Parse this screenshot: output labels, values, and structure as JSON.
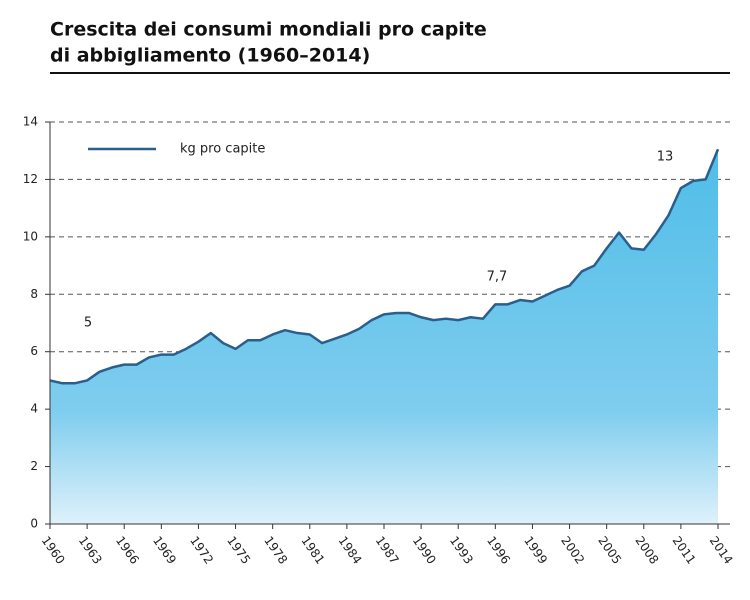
{
  "chart_data": {
    "type": "area",
    "title": [
      "Crescita dei consumi mondiali pro capite",
      "di abbigliamento (1960–2014)"
    ],
    "x": [
      1960,
      1961,
      1962,
      1963,
      1964,
      1965,
      1966,
      1967,
      1968,
      1969,
      1970,
      1971,
      1972,
      1973,
      1974,
      1975,
      1976,
      1977,
      1978,
      1979,
      1980,
      1981,
      1982,
      1983,
      1984,
      1985,
      1986,
      1987,
      1988,
      1989,
      1990,
      1991,
      1992,
      1993,
      1994,
      1995,
      1996,
      1997,
      1998,
      1999,
      2000,
      2001,
      2002,
      2003,
      2004,
      2005,
      2006,
      2007,
      2008,
      2009,
      2010,
      2011,
      2012,
      2013,
      2014
    ],
    "series": [
      {
        "name": "kg pro capite",
        "color": "#2b5e8c",
        "values": [
          5.0,
          4.9,
          4.9,
          5.0,
          5.3,
          5.45,
          5.55,
          5.55,
          5.8,
          5.9,
          5.9,
          6.1,
          6.35,
          6.65,
          6.3,
          6.1,
          6.4,
          6.4,
          6.6,
          6.75,
          6.65,
          6.6,
          6.3,
          6.45,
          6.6,
          6.8,
          7.1,
          7.3,
          7.35,
          7.35,
          7.2,
          7.1,
          7.15,
          7.1,
          7.2,
          7.15,
          7.65,
          7.65,
          7.8,
          7.75,
          7.95,
          8.15,
          8.3,
          8.8,
          9.0,
          9.6,
          10.15,
          9.6,
          9.55,
          10.1,
          10.75,
          11.7,
          11.95,
          12.0,
          13.05
        ]
      }
    ],
    "annotations": [
      "5",
      "7,7",
      "13"
    ],
    "xlim": [
      1960,
      2014
    ],
    "xticks": [
      1960,
      1963,
      1966,
      1969,
      1972,
      1975,
      1978,
      1981,
      1984,
      1987,
      1990,
      1993,
      1996,
      1999,
      2002,
      2005,
      2008,
      2011,
      2014
    ],
    "ylim": [
      0,
      14
    ],
    "yticks": [
      0,
      2,
      4,
      6,
      8,
      10,
      12,
      14
    ],
    "grid": true,
    "legend": "top-left"
  }
}
